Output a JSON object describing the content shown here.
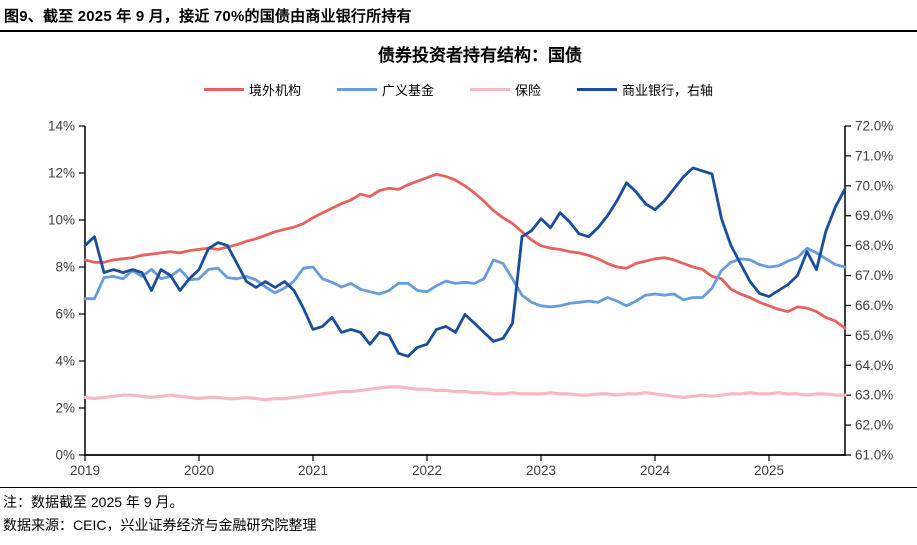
{
  "header": {
    "title": "图9、截至 2025 年 9 月，接近 70%的国债由商业银行所持有"
  },
  "notes": {
    "note1": "注：数据截至 2025 年 9 月。",
    "note2": "数据来源：CEIC，兴业证券经济与金融研究院整理"
  },
  "colors": {
    "axis_text": "#404040",
    "axis_line": "#000000",
    "rule": "#000000"
  },
  "chart_data": {
    "type": "line",
    "title": "债券投资者持有结构：国债",
    "x_range": [
      "2019-01",
      "2025-09"
    ],
    "x_unit": "month",
    "grid": "off",
    "legend_position": "top",
    "x_tick_labels": [
      "2019",
      "2020",
      "2021",
      "2022",
      "2023",
      "2024",
      "2025"
    ],
    "x_tick_indices": [
      0,
      12,
      24,
      36,
      48,
      60,
      72
    ],
    "left_axis": {
      "min": 0,
      "max": 14,
      "tick_values": [
        0,
        2,
        4,
        6,
        8,
        10,
        12,
        14
      ],
      "tick_labels": [
        "0%",
        "2%",
        "4%",
        "6%",
        "8%",
        "10%",
        "12%",
        "14%"
      ]
    },
    "right_axis": {
      "min": 61,
      "max": 72,
      "tick_values": [
        61,
        62,
        63,
        64,
        65,
        66,
        67,
        68,
        69,
        70,
        71,
        72
      ],
      "tick_labels": [
        "61.0%",
        "62.0%",
        "63.0%",
        "64.0%",
        "65.0%",
        "66.0%",
        "67.0%",
        "68.0%",
        "69.0%",
        "70.0%",
        "71.0%",
        "72.0%"
      ]
    },
    "series": [
      {
        "name": "境外机构",
        "axis": "left",
        "color": "#E8625D",
        "width": 2.8,
        "values": [
          8.3,
          8.2,
          8.2,
          8.3,
          8.35,
          8.4,
          8.5,
          8.55,
          8.6,
          8.65,
          8.6,
          8.7,
          8.75,
          8.8,
          8.75,
          8.85,
          8.95,
          9.1,
          9.2,
          9.35,
          9.5,
          9.6,
          9.7,
          9.85,
          10.1,
          10.3,
          10.5,
          10.7,
          10.85,
          11.1,
          11.0,
          11.25,
          11.35,
          11.3,
          11.5,
          11.65,
          11.8,
          11.95,
          11.85,
          11.7,
          11.45,
          11.15,
          10.8,
          10.4,
          10.1,
          9.85,
          9.5,
          9.15,
          8.9,
          8.8,
          8.75,
          8.65,
          8.6,
          8.5,
          8.35,
          8.15,
          8.0,
          7.95,
          8.15,
          8.25,
          8.35,
          8.4,
          8.3,
          8.15,
          8.0,
          7.9,
          7.6,
          7.5,
          7.05,
          6.85,
          6.7,
          6.5,
          6.35,
          6.2,
          6.1,
          6.3,
          6.25,
          6.1,
          5.85,
          5.7,
          5.4
        ]
      },
      {
        "name": "广义基金",
        "axis": "left",
        "color": "#689CDE",
        "width": 2.8,
        "values": [
          6.65,
          6.65,
          7.55,
          7.6,
          7.5,
          7.85,
          7.6,
          7.9,
          7.5,
          7.6,
          7.9,
          7.45,
          7.5,
          7.9,
          7.95,
          7.55,
          7.5,
          7.6,
          7.45,
          7.15,
          6.9,
          7.1,
          7.4,
          7.95,
          8.0,
          7.5,
          7.35,
          7.15,
          7.3,
          7.05,
          6.95,
          6.85,
          7.0,
          7.3,
          7.3,
          7.0,
          6.95,
          7.2,
          7.4,
          7.3,
          7.35,
          7.3,
          7.5,
          8.3,
          8.15,
          7.5,
          6.8,
          6.5,
          6.35,
          6.3,
          6.35,
          6.45,
          6.5,
          6.55,
          6.5,
          6.7,
          6.55,
          6.35,
          6.55,
          6.8,
          6.85,
          6.8,
          6.85,
          6.6,
          6.7,
          6.7,
          7.1,
          7.85,
          8.2,
          8.35,
          8.3,
          8.1,
          8.0,
          8.05,
          8.25,
          8.4,
          8.8,
          8.6,
          8.35,
          8.1,
          8.0
        ]
      },
      {
        "name": "保险",
        "axis": "left",
        "color": "#F7B8C4",
        "width": 3.2,
        "values": [
          2.45,
          2.4,
          2.45,
          2.5,
          2.55,
          2.55,
          2.5,
          2.45,
          2.5,
          2.55,
          2.5,
          2.45,
          2.4,
          2.45,
          2.45,
          2.4,
          2.4,
          2.45,
          2.4,
          2.35,
          2.4,
          2.4,
          2.45,
          2.5,
          2.55,
          2.6,
          2.65,
          2.7,
          2.7,
          2.75,
          2.8,
          2.85,
          2.9,
          2.9,
          2.85,
          2.8,
          2.8,
          2.75,
          2.75,
          2.7,
          2.7,
          2.65,
          2.65,
          2.6,
          2.6,
          2.65,
          2.6,
          2.6,
          2.6,
          2.65,
          2.6,
          2.6,
          2.55,
          2.55,
          2.6,
          2.6,
          2.55,
          2.6,
          2.6,
          2.65,
          2.6,
          2.55,
          2.5,
          2.45,
          2.5,
          2.55,
          2.5,
          2.55,
          2.6,
          2.6,
          2.65,
          2.6,
          2.6,
          2.65,
          2.6,
          2.6,
          2.55,
          2.6,
          2.6,
          2.55,
          2.55
        ]
      },
      {
        "name": "商业银行，右轴",
        "axis": "right",
        "color": "#1A4E9C",
        "width": 2.8,
        "values": [
          68.0,
          68.3,
          67.1,
          67.2,
          67.1,
          67.2,
          67.1,
          66.5,
          67.2,
          67.0,
          66.5,
          66.9,
          67.2,
          67.9,
          68.1,
          68.0,
          67.4,
          66.8,
          66.6,
          66.8,
          66.6,
          66.8,
          66.5,
          65.9,
          65.2,
          65.3,
          65.6,
          65.1,
          65.2,
          65.1,
          64.7,
          65.1,
          65.0,
          64.4,
          64.3,
          64.6,
          64.7,
          65.2,
          65.3,
          65.1,
          65.7,
          65.4,
          65.1,
          64.8,
          64.9,
          65.4,
          68.3,
          68.5,
          68.9,
          68.6,
          69.1,
          68.8,
          68.4,
          68.3,
          68.6,
          69.0,
          69.5,
          70.1,
          69.8,
          69.4,
          69.2,
          69.5,
          69.9,
          70.3,
          70.6,
          70.5,
          70.4,
          68.9,
          68.0,
          67.4,
          66.8,
          66.4,
          66.3,
          66.5,
          66.7,
          67.0,
          67.8,
          67.2,
          68.5,
          69.3,
          69.9
        ]
      }
    ]
  }
}
